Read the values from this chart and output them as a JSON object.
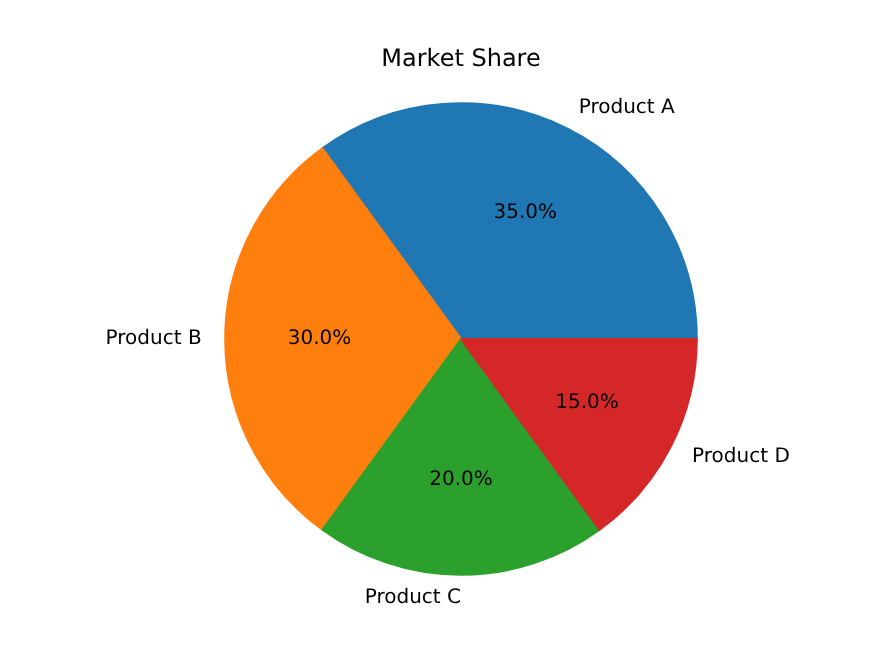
{
  "chart_data": {
    "type": "pie",
    "title": "Market Share",
    "categories": [
      "Product A",
      "Product B",
      "Product C",
      "Product D"
    ],
    "values": [
      35,
      30,
      20,
      15
    ],
    "colors": [
      "#1f77b4",
      "#ff7f0e",
      "#2ca02c",
      "#d62728"
    ],
    "value_labels": [
      "35.0%",
      "30.0%",
      "20.0%",
      "15.0%"
    ]
  }
}
